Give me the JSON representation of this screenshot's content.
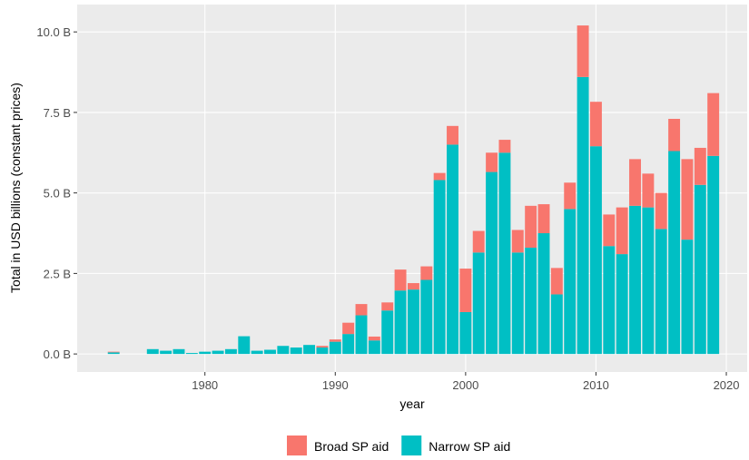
{
  "chart_data": {
    "type": "stacked-bar",
    "x_label": "year",
    "y_label": "Total in USD billions (constant prices)",
    "x": [
      1973,
      1976,
      1977,
      1978,
      1979,
      1980,
      1981,
      1982,
      1983,
      1984,
      1985,
      1986,
      1987,
      1988,
      1989,
      1990,
      1991,
      1992,
      1993,
      1994,
      1995,
      1996,
      1997,
      1998,
      1999,
      2000,
      2001,
      2002,
      2003,
      2004,
      2005,
      2006,
      2007,
      2008,
      2009,
      2010,
      2011,
      2012,
      2013,
      2014,
      2015,
      2016,
      2017,
      2018,
      2019
    ],
    "series": [
      {
        "name": "Narrow SP aid",
        "color": "#00BFC4",
        "values": [
          0.05,
          0.15,
          0.1,
          0.15,
          0.03,
          0.07,
          0.1,
          0.15,
          0.55,
          0.1,
          0.13,
          0.25,
          0.2,
          0.28,
          0.2,
          0.38,
          0.62,
          1.2,
          0.42,
          1.35,
          1.97,
          2.0,
          2.3,
          5.4,
          6.5,
          1.3,
          3.15,
          5.65,
          6.25,
          3.15,
          3.3,
          3.75,
          1.85,
          4.5,
          8.6,
          6.45,
          3.35,
          3.1,
          4.6,
          4.55,
          3.88,
          6.3,
          3.55,
          5.25,
          6.15
        ]
      },
      {
        "name": "Broad SP aid",
        "color": "#F8766D",
        "values": [
          0.02,
          0,
          0,
          0,
          0,
          0,
          0,
          0,
          0,
          0,
          0,
          0,
          0,
          0,
          0.05,
          0.07,
          0.35,
          0.35,
          0.12,
          0.25,
          0.65,
          0.2,
          0.42,
          0.22,
          0.58,
          1.35,
          0.67,
          0.6,
          0.4,
          0.7,
          1.3,
          0.9,
          0.82,
          0.82,
          1.6,
          1.38,
          0.98,
          1.45,
          1.45,
          1.05,
          1.12,
          1.0,
          2.5,
          1.15,
          1.95
        ]
      }
    ],
    "legend_order": [
      "Broad SP aid",
      "Narrow SP aid"
    ],
    "xlim": [
      1970.2,
      2021.6
    ],
    "xticks": [
      1980,
      1990,
      2000,
      2010,
      2020
    ],
    "ylim": [
      -0.56,
      10.85
    ],
    "yticks": [
      {
        "value": 0,
        "label": "0.0 B"
      },
      {
        "value": 2.5,
        "label": "2.5 B"
      },
      {
        "value": 5,
        "label": "5.0 B"
      },
      {
        "value": 7.5,
        "label": "7.5 B"
      },
      {
        "value": 10,
        "label": "10.0 B"
      }
    ],
    "grid": true,
    "legend_position": "bottom"
  }
}
